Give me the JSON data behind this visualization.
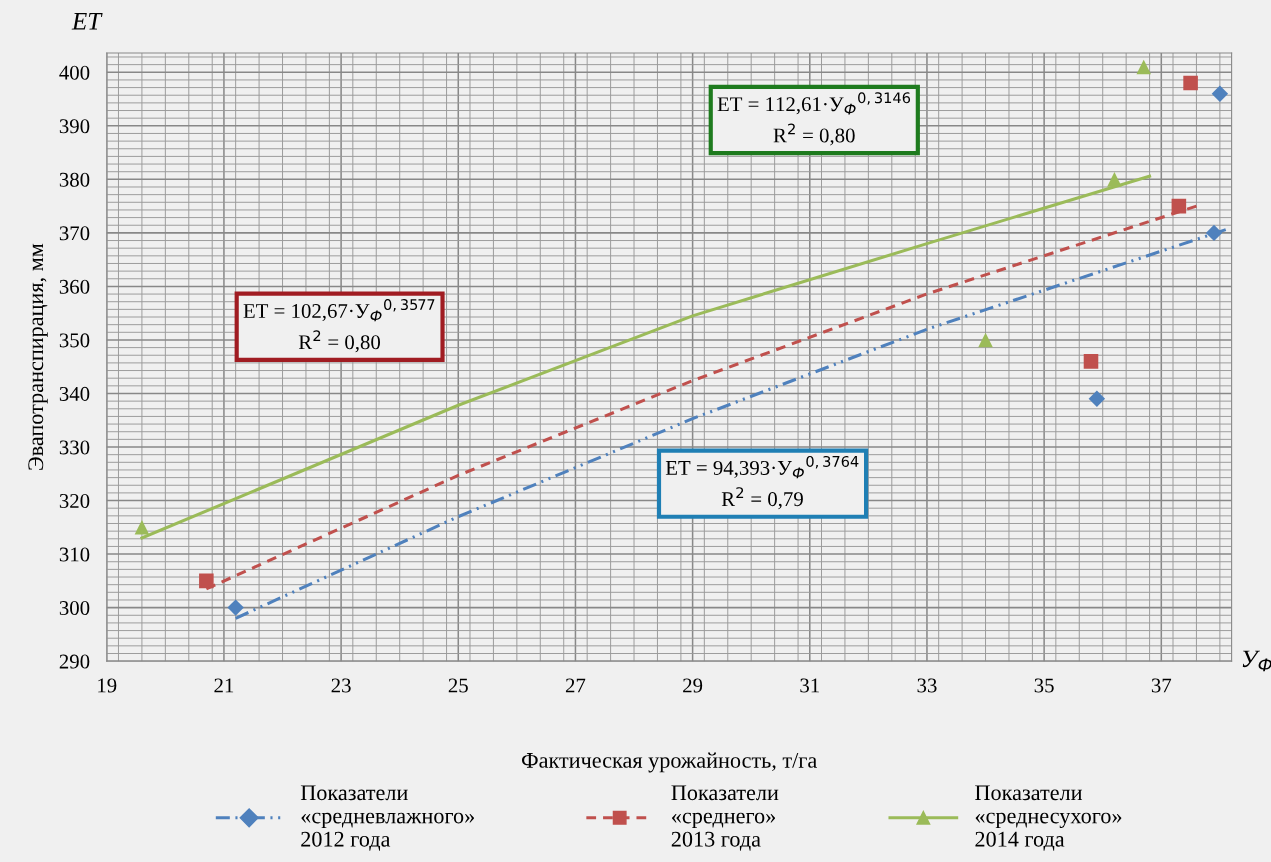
{
  "chart_data": {
    "type": "scatter",
    "xlabel": "Фактическая урожайность, т/га",
    "ylabel": "Эвапотранспирация, мм",
    "xlim": [
      19,
      38.2
    ],
    "xticks": [
      19,
      21,
      23,
      25,
      27,
      29,
      31,
      33,
      35,
      37
    ],
    "ylim": [
      290,
      403.6
    ],
    "yticks": [
      290,
      300,
      310,
      320,
      330,
      340,
      350,
      360,
      370,
      380,
      390,
      400
    ],
    "grid": true,
    "legend": "bottom",
    "series": [
      {
        "name": "Показатели\n«средневлажного»\n2012 года",
        "color": "#4f81bd",
        "marker": "diamond",
        "x": [
          21.2,
          35.9,
          37.9,
          38.0
        ],
        "values": [
          300,
          339,
          370,
          396
        ]
      },
      {
        "name": "Показатели\n«среднего»\n2013 года",
        "color": "#c0504d",
        "marker": "square",
        "x": [
          20.7,
          35.8,
          37.3,
          37.5
        ],
        "values": [
          305,
          346,
          375,
          398
        ]
      },
      {
        "name": "Показатели\n«среднесухого»\n2014 года",
        "color": "#9bbb59",
        "marker": "triangle",
        "x": [
          19.6,
          34.0,
          36.2,
          36.7
        ],
        "values": [
          315,
          350,
          380,
          401
        ]
      },
      {
        "type": "line",
        "color": "#4f81bd",
        "line_style": "dashdot",
        "x": [
          21.2,
          25,
          29,
          33,
          38.1
        ],
        "values": [
          298,
          317,
          335.3,
          352,
          370.6
        ]
      },
      {
        "type": "line",
        "color": "#c0504d",
        "line_style": "dashed",
        "x": [
          20.7,
          25,
          29,
          33,
          37.6
        ],
        "values": [
          303.5,
          324.7,
          342.4,
          358.6,
          375
        ]
      },
      {
        "type": "line",
        "color": "#9bbb59",
        "line_style": "solid",
        "x": [
          19.6,
          25,
          29,
          33,
          36.8
        ],
        "values": [
          313,
          337.8,
          354.5,
          368,
          380.6
        ]
      }
    ],
    "annotations": [
      "ET = 112,61·У$_{Ф}$$^{0,3146}$\nR$^{2}$ = 0,80",
      "ET = 102,67·У$_{Ф}$$^{0,3577}$\nR$^{2}$ = 0,80",
      "ET = 94,393·У$_{Ф}$$^{0,3764}$\nR$^{2}$ = 0,79",
      "ET",
      "У$_{Ф}$"
    ]
  }
}
